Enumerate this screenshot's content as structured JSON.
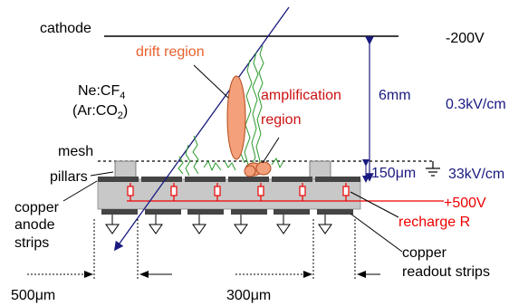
{
  "labels": {
    "cathode": "cathode",
    "cathode_voltage": "-200V",
    "drift_region": "drift region",
    "gas_line1_main": "Ne:CF",
    "gas_line1_sub": "4",
    "gas_line2_main": "(Ar:CO",
    "gas_line2_sub": "2",
    "gas_line2_tail": ")",
    "amplification_line1": "amplification",
    "amplification_line2": "region",
    "drift_gap": "6mm",
    "drift_field": "0.3kV/cm",
    "mesh": "mesh",
    "pillars": "pillars",
    "amp_gap": "150μm",
    "amp_field": "33kV/cm",
    "anode_line1": "copper",
    "anode_line2": "anode",
    "anode_line3": "strips",
    "anode_voltage": "+500V",
    "recharge": "recharge R",
    "readout_line1": "copper",
    "readout_line2": "readout strips",
    "pitch_readout": "500μm",
    "pitch_anode": "300μm"
  },
  "colors": {
    "text": "#000000",
    "drift_text": "#e8602c",
    "amp_text": "#cc1111",
    "field_text": "#1a1a80",
    "hv_text": "#ee0000",
    "track": "#1a1a80",
    "electrons": "#2a9a2a",
    "drift_cloud": "#f4a07a",
    "substrate": "#c8c8c8",
    "strip": "#444444"
  }
}
